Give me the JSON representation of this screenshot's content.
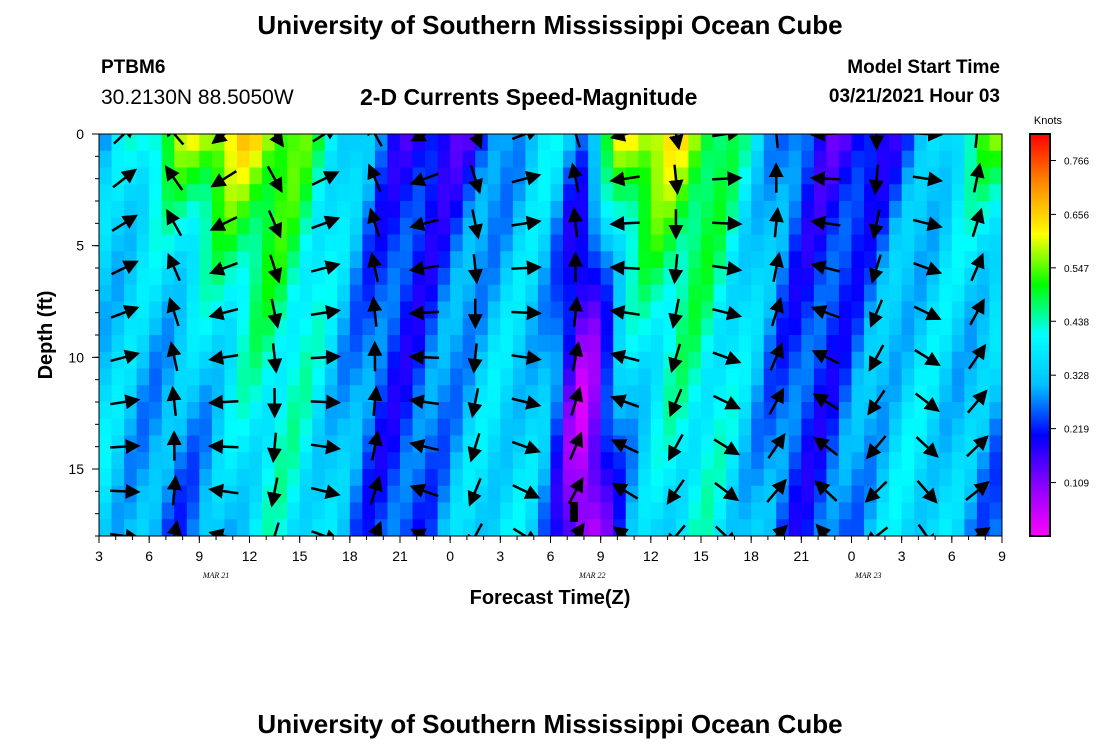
{
  "header": {
    "title_top": "University of Southern Mississippi Ocean Cube",
    "title_bottom": "University of Southern Mississippi Ocean Cube",
    "station_id": "PTBM6",
    "station_coords": "30.2130N 88.5050W",
    "chart_title": "2-D Currents Speed-Magnitude",
    "model_start_label": "Model Start Time",
    "model_start_value": "03/21/2021 Hour 03"
  },
  "chart_data": {
    "type": "heatmap",
    "title": "2-D Currents Speed-Magnitude",
    "xlabel": "Forecast Time(Z)",
    "ylabel": "Depth (ft)",
    "x_range_hours_since_mar21_00z": [
      3,
      57
    ],
    "y_range_ft": [
      0,
      18
    ],
    "y_inverted": true,
    "x_tick_labels": [
      "3",
      "6",
      "9",
      "12",
      "15",
      "18",
      "21",
      "0",
      "3",
      "6",
      "9",
      "12",
      "15",
      "18",
      "21",
      "0",
      "3",
      "6",
      "9"
    ],
    "y_tick_labels": [
      "0",
      "5",
      "10",
      "15"
    ],
    "y_tick_values": [
      0,
      5,
      10,
      15
    ],
    "date_labels": [
      {
        "text": "MAR 21",
        "hour": 10
      },
      {
        "text": "MAR 22",
        "hour": 32.5
      },
      {
        "text": "MAR 23",
        "hour": 49
      }
    ],
    "colorbar": {
      "label": "Knots",
      "range": [
        0,
        0.82
      ],
      "tick_labels": [
        "0.766",
        "0.656",
        "0.547",
        "0.438",
        "0.328",
        "0.219",
        "0.109"
      ],
      "tick_values": [
        0.766,
        0.656,
        0.547,
        0.438,
        0.328,
        0.219,
        0.109
      ],
      "colors": [
        "#ff00ff",
        "#8c00ff",
        "#0000ff",
        "#00bfff",
        "#00ffff",
        "#00ff00",
        "#ffff00",
        "#ff8c00",
        "#ff0000"
      ]
    },
    "grid": false,
    "vector_times": [
      4.5,
      7.5,
      10.5,
      13.5,
      16.5,
      19.5,
      22.5,
      25.5,
      28.5,
      31.5,
      34.5,
      37.5,
      40.5,
      43.5,
      46.5,
      49.5,
      52.5,
      55.5
    ],
    "vector_depths": [
      0,
      2,
      4,
      6,
      8,
      10,
      12,
      14,
      16,
      18
    ]
  }
}
